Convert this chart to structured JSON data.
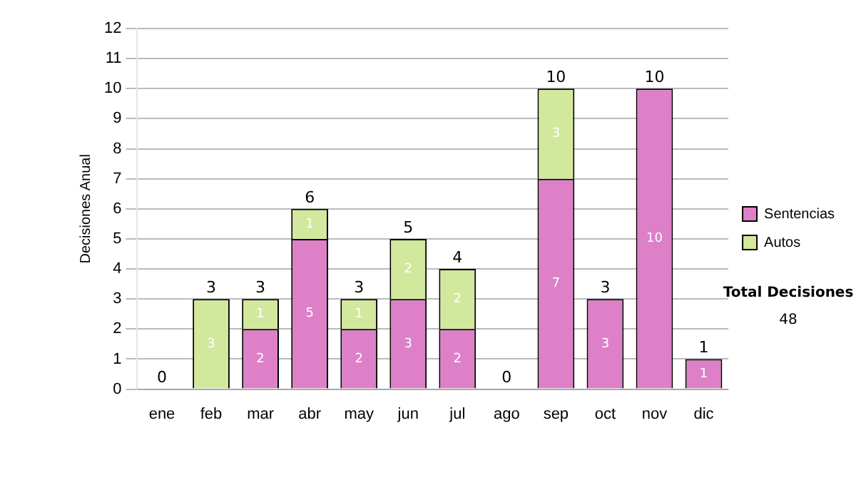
{
  "chart_data": {
    "type": "bar",
    "stacked": true,
    "ylabel": "Decisiones Anual",
    "categories": [
      "ene",
      "feb",
      "mar",
      "abr",
      "may",
      "jun",
      "jul",
      "ago",
      "sep",
      "oct",
      "nov",
      "dic"
    ],
    "series": [
      {
        "name": "Sentencias",
        "color": "#dd80c8",
        "values": [
          0,
          0,
          2,
          5,
          2,
          3,
          2,
          0,
          7,
          3,
          10,
          1
        ],
        "value_labels": [
          null,
          null,
          "2",
          "5",
          "2",
          "3",
          "2",
          null,
          "7",
          "3",
          "10",
          "1"
        ]
      },
      {
        "name": "Autos",
        "color": "#d2e89c",
        "values": [
          0,
          3,
          1,
          1,
          1,
          2,
          2,
          0,
          3,
          0,
          0,
          0
        ],
        "value_labels": [
          null,
          "3",
          "1",
          "1",
          "1",
          "2",
          "2",
          null,
          "3",
          null,
          null,
          null
        ]
      }
    ],
    "totals": [
      "0",
      "3",
      "3",
      "6",
      "3",
      "5",
      "4",
      "0",
      "10",
      "3",
      "10",
      "1"
    ],
    "ylim": [
      0,
      12
    ],
    "yticks": [
      0,
      1,
      2,
      3,
      4,
      5,
      6,
      7,
      8,
      9,
      10,
      11,
      12
    ],
    "grid": "y",
    "legend": "right",
    "annotations": [
      "Total Decisiones",
      "48"
    ]
  }
}
